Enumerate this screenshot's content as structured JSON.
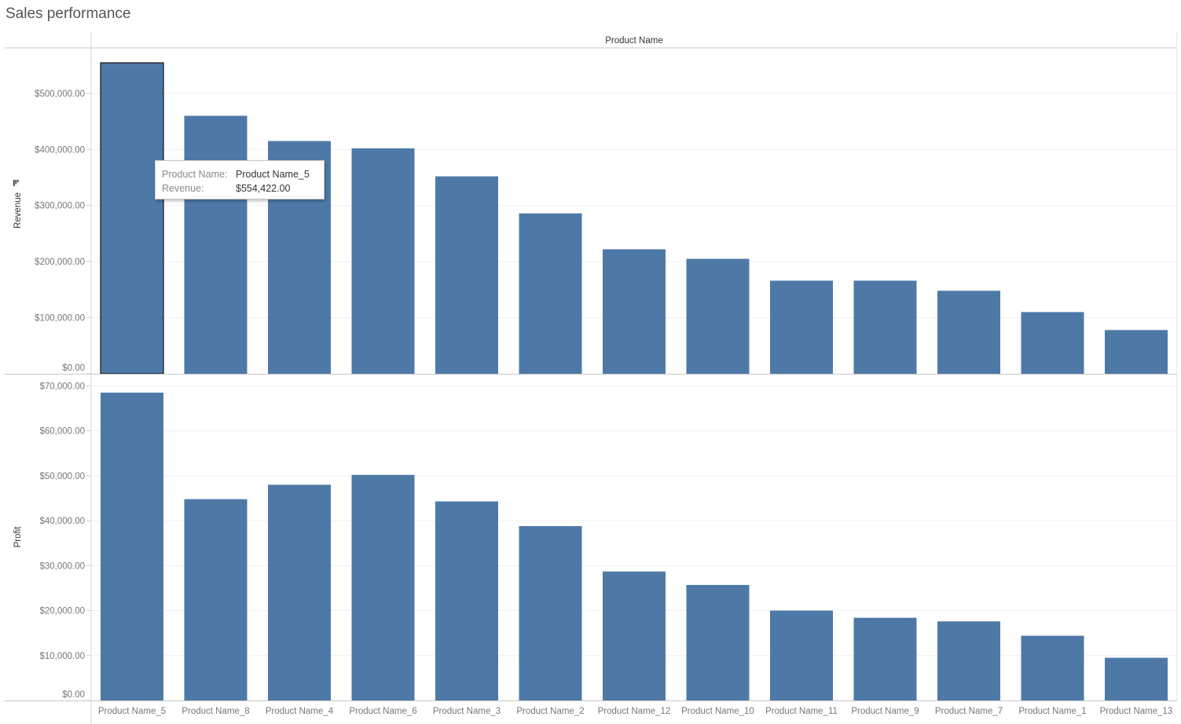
{
  "title": "Sales performance",
  "chart_data": [
    {
      "type": "bar",
      "header": "Product Name",
      "ylabel": "Revenue",
      "ylim": [
        0,
        554422
      ],
      "yticks": [
        0,
        100000,
        200000,
        300000,
        400000,
        500000
      ],
      "ytick_labels": [
        "$0.00",
        "$100,000.00",
        "$200,000.00",
        "$300,000.00",
        "$400,000.00",
        "$500,000.00"
      ],
      "sorted_indicator_icon": "sort-descending-icon",
      "categories": [
        "Product Name_5",
        "Product Name_8",
        "Product Name_4",
        "Product Name_6",
        "Product Name_3",
        "Product Name_2",
        "Product Name_12",
        "Product Name_10",
        "Product Name_11",
        "Product Name_9",
        "Product Name_7",
        "Product Name_1",
        "Product Name_13"
      ],
      "values": [
        554422,
        460000,
        415000,
        402000,
        352000,
        286000,
        222000,
        205000,
        166000,
        166000,
        148000,
        110000,
        78000
      ],
      "bar_color": "#4e79a7",
      "highlighted_category": "Product Name_5",
      "grid": true
    },
    {
      "type": "bar",
      "ylabel": "Profit",
      "ylim": [
        0,
        72000
      ],
      "yticks": [
        0,
        10000,
        20000,
        30000,
        40000,
        50000,
        60000,
        70000
      ],
      "ytick_labels": [
        "$0.00",
        "$10,000.00",
        "$20,000.00",
        "$30,000.00",
        "$40,000.00",
        "$50,000.00",
        "$60,000.00",
        "$70,000.00"
      ],
      "categories": [
        "Product Name_5",
        "Product Name_8",
        "Product Name_4",
        "Product Name_6",
        "Product Name_3",
        "Product Name_2",
        "Product Name_12",
        "Product Name_10",
        "Product Name_11",
        "Product Name_9",
        "Product Name_7",
        "Product Name_1",
        "Product Name_13"
      ],
      "values": [
        68500,
        44800,
        48000,
        50200,
        44300,
        38800,
        28700,
        25700,
        20000,
        18400,
        17600,
        14400,
        9500
      ],
      "bar_color": "#4e79a7",
      "grid": true
    }
  ],
  "tooltip": {
    "rows": [
      {
        "key": "Product Name:",
        "value": "Product Name_5"
      },
      {
        "key": "Revenue:",
        "value": "$554,422.00"
      }
    ]
  }
}
